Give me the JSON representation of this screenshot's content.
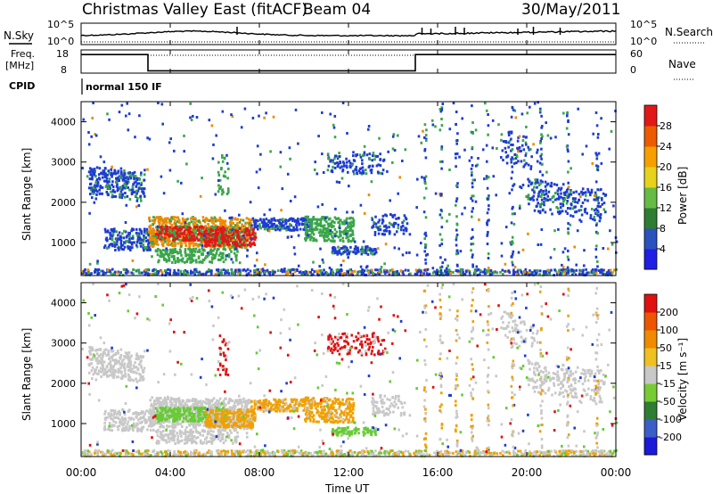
{
  "header": {
    "station": "Christmas Valley East (fitACF)",
    "beam": "Beam 04",
    "date": "30/May/2011"
  },
  "left_labels": {
    "nsky": "N.Sky",
    "freq_line1": "Freq.",
    "freq_line2": "[MHz]",
    "cpid": "CPID"
  },
  "right_labels": {
    "nsearch": "N.Search",
    "nave": "Nave"
  },
  "cpid_text": "normal 150 IF",
  "chart_data": [
    {
      "type": "line",
      "title": "N.Sky / N.Search",
      "ylabel_left": "N.Sky",
      "ylabel_right": "N.Search",
      "left_ticks": [
        "10^5",
        "10^0"
      ],
      "right_ticks": [
        "10^5",
        "10^0"
      ],
      "y_scale": "log"
    },
    {
      "type": "line",
      "title": "Freq. [MHz] / Nave",
      "left_ticks": [
        "18",
        "8"
      ],
      "right_ticks": [
        "60",
        "0"
      ],
      "series": [
        {
          "name": "Freq.",
          "x": [
            0,
            3.0,
            3.0,
            15.0,
            15.0,
            24
          ],
          "y": [
            16,
            16,
            9,
            9,
            16,
            16
          ]
        }
      ]
    },
    {
      "type": "heatmap",
      "ylabel": "Slant Range [km]",
      "y_ticks": [
        "1000",
        "2000",
        "3000",
        "4000"
      ],
      "ylim": [
        180,
        4500
      ],
      "xlim": [
        0,
        24
      ],
      "colorbar_label": "Power [dB]",
      "colorbar_ticks": [
        "4",
        "8",
        "12",
        "16",
        "20",
        "24",
        "28"
      ],
      "colorbar_colors": [
        "#1e1ee6",
        "#2a52be",
        "#2e7d32",
        "#66bb44",
        "#e6d21a",
        "#f5a000",
        "#ee5a00",
        "#e21818"
      ]
    },
    {
      "type": "heatmap",
      "ylabel": "Slant Range [km]",
      "y_ticks": [
        "1000",
        "2000",
        "3000",
        "4000"
      ],
      "ylim": [
        180,
        4500
      ],
      "xlim": [
        0,
        24
      ],
      "colorbar_label": "Velocity [m s⁻¹]",
      "colorbar_ticks": [
        "200",
        "100",
        "50",
        "15",
        "-15",
        "-50",
        "-100",
        "-200"
      ],
      "colorbar_colors": [
        "#1a1ad8",
        "#3a5fc8",
        "#2e7d32",
        "#77cc33",
        "#c8c8c8",
        "#f0c020",
        "#f08a00",
        "#ee5500",
        "#e01010"
      ]
    }
  ],
  "x_axis": {
    "label": "Time UT",
    "ticks": [
      "00:00",
      "04:00",
      "08:00",
      "12:00",
      "16:00",
      "20:00",
      "00:00"
    ]
  },
  "palette": {
    "power_blue": "#1e3cd2",
    "power_green": "#3aa64a",
    "power_orange": "#f08a00",
    "power_red": "#e21818",
    "vel_gray": "#c8c8c8",
    "vel_orange": "#f0a000",
    "vel_green": "#66cc33",
    "vel_red": "#e01010"
  }
}
